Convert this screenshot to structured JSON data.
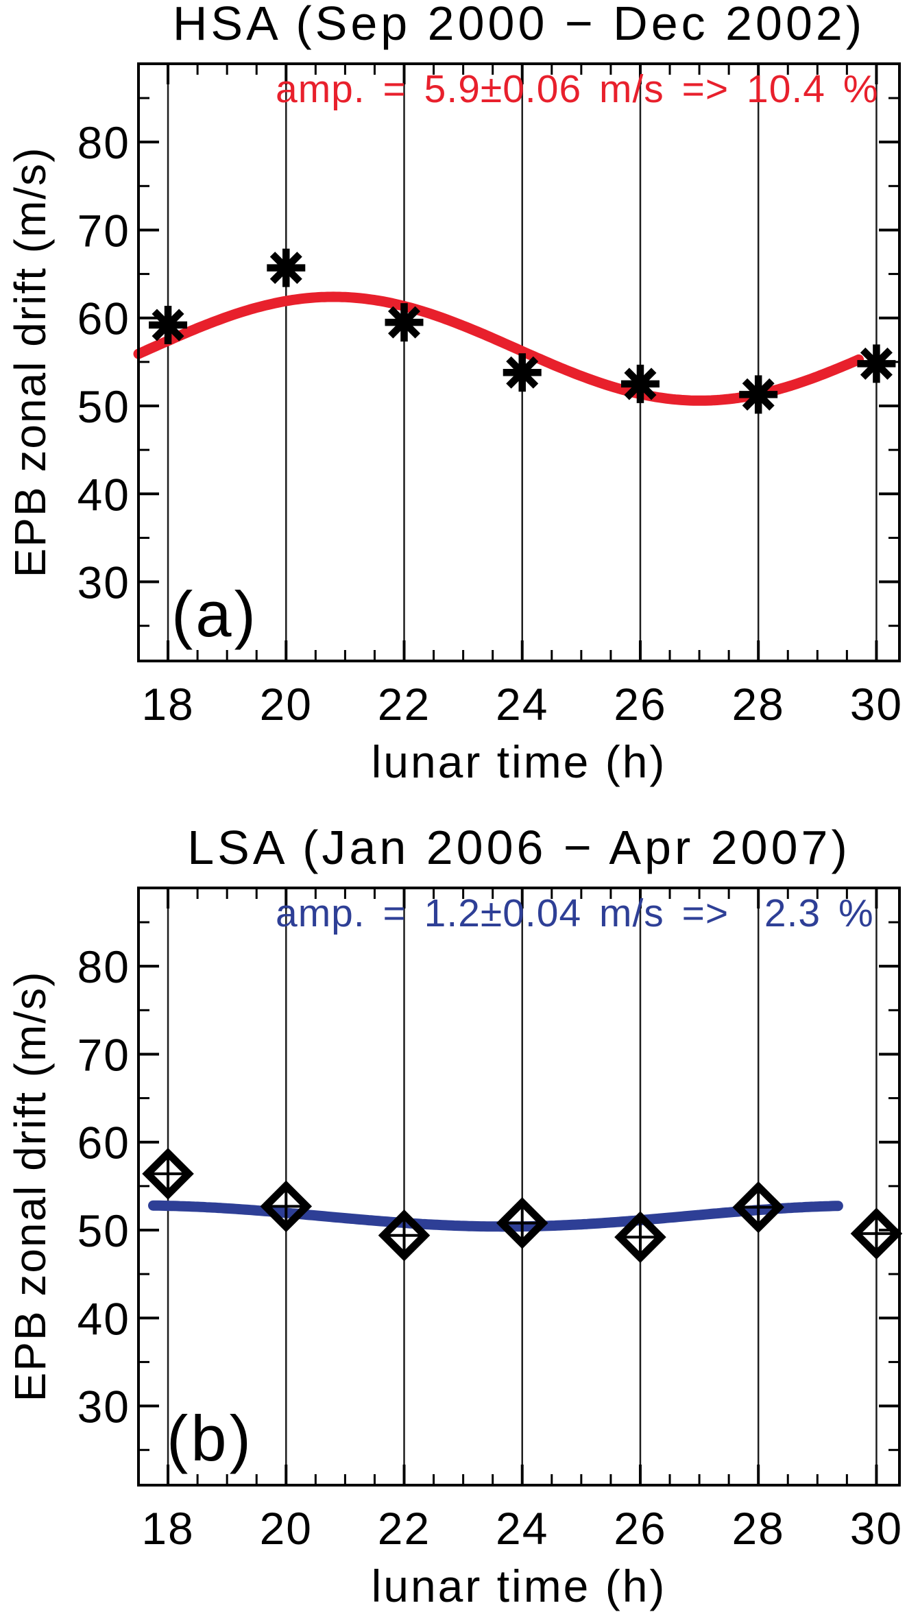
{
  "figure": {
    "background": "#ffffff",
    "text_color": "#000000"
  },
  "chart_data": [
    {
      "type": "line",
      "panel_label": "(a)",
      "title": "HSA (Sep 2000 − Dec 2002)",
      "annotation": {
        "text": "amp. = 5.9±0.06 m/s => 10.4 %",
        "color": "#e8202c"
      },
      "xlabel": "lunar time (h)",
      "ylabel": "EPB zonal drift (m/s)",
      "xlim": [
        17.5,
        30.39
      ],
      "ylim": [
        21,
        88.9
      ],
      "x_major_ticks": [
        18,
        20,
        22,
        24,
        26,
        28,
        30
      ],
      "x_minor_step": 0.5,
      "y_major_ticks": [
        30,
        40,
        50,
        60,
        70,
        80
      ],
      "y_minor_step": 5,
      "gridlines_x": [
        18,
        20,
        22,
        24,
        26,
        28,
        30
      ],
      "grid": true,
      "legend": "none",
      "marker": "asterisk",
      "marker_color": "#000000",
      "x": [
        18,
        20,
        22,
        24,
        26,
        28,
        30
      ],
      "y": [
        59.2,
        65.7,
        59.5,
        53.8,
        52.5,
        51.3,
        54.8
      ],
      "fit_curve": {
        "color": "#e8202c",
        "mean": 56.5,
        "amplitude": 5.9,
        "period_h": 12.42,
        "shape": "crest",
        "t_extremum": 20.8,
        "t_start": 17.5,
        "t_end": 29.72
      }
    },
    {
      "type": "line",
      "panel_label": "(b)",
      "title": "LSA (Jan 2006 − Apr 2007)",
      "annotation": {
        "text": "amp. = 1.2±0.04 m/s =>  2.3 %",
        "color": "#2e3f96"
      },
      "xlabel": "lunar time (h)",
      "ylabel": "EPB zonal drift (m/s)",
      "xlim": [
        17.5,
        30.39
      ],
      "ylim": [
        21,
        88.9
      ],
      "x_major_ticks": [
        18,
        20,
        22,
        24,
        26,
        28,
        30
      ],
      "x_minor_step": 0.5,
      "y_major_ticks": [
        30,
        40,
        50,
        60,
        70,
        80
      ],
      "y_minor_step": 5,
      "gridlines_x": [
        18,
        20,
        22,
        24,
        26,
        28,
        30
      ],
      "grid": true,
      "legend": "none",
      "marker": "diamond-plus",
      "marker_color": "#000000",
      "x": [
        18,
        20,
        22,
        24,
        26,
        28,
        30
      ],
      "y": [
        56.4,
        52.7,
        49.4,
        50.8,
        49.2,
        52.6,
        49.6
      ],
      "fit_curve": {
        "color": "#2e3f96",
        "mean": 51.6,
        "amplitude": 1.2,
        "period_h": 12.42,
        "shape": "trough",
        "t_extremum": 23.7,
        "t_start": 17.75,
        "t_end": 29.35
      }
    }
  ]
}
